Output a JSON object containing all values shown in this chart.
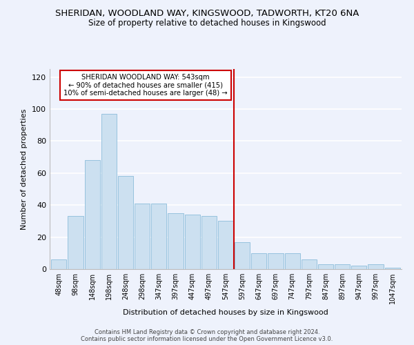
{
  "title": "SHERIDAN, WOODLAND WAY, KINGSWOOD, TADWORTH, KT20 6NA",
  "subtitle": "Size of property relative to detached houses in Kingswood",
  "xlabel": "Distribution of detached houses by size in Kingswood",
  "ylabel": "Number of detached properties",
  "bar_values": [
    6,
    33,
    68,
    97,
    58,
    41,
    41,
    35,
    34,
    33,
    30,
    17,
    10,
    10,
    10,
    6,
    3,
    3,
    2,
    3,
    1
  ],
  "bar_labels": [
    "48sqm",
    "98sqm",
    "148sqm",
    "198sqm",
    "248sqm",
    "298sqm",
    "347sqm",
    "397sqm",
    "447sqm",
    "497sqm",
    "547sqm",
    "597sqm",
    "647sqm",
    "697sqm",
    "747sqm",
    "797sqm",
    "847sqm",
    "897sqm",
    "947sqm",
    "997sqm",
    "1047sqm"
  ],
  "bar_color": "#cce0f0",
  "bar_edgecolor": "#8bbcda",
  "vline_x": 10.5,
  "vline_color": "#cc0000",
  "annotation_title": "SHERIDAN WOODLAND WAY: 543sqm",
  "annotation_line1": "← 90% of detached houses are smaller (415)",
  "annotation_line2": "10% of semi-detached houses are larger (48) →",
  "annotation_box_color": "#cc0000",
  "ylim": [
    0,
    125
  ],
  "yticks": [
    0,
    20,
    40,
    60,
    80,
    100,
    120
  ],
  "footer1": "Contains HM Land Registry data © Crown copyright and database right 2024.",
  "footer2": "Contains public sector information licensed under the Open Government Licence v3.0.",
  "background_color": "#eef2fc",
  "grid_color": "#ffffff"
}
